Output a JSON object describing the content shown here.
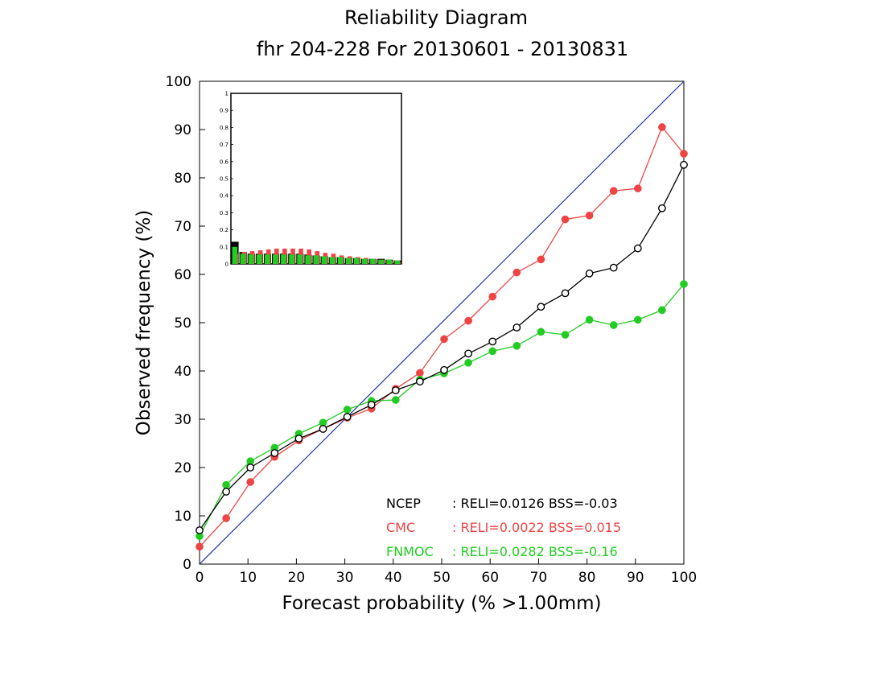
{
  "chart_data": {
    "type": "line",
    "title": "Reliability Diagram",
    "subtitle": "fhr 204-228 For 20130601 - 20130831",
    "xlabel": "Forecast probability (% >1.00mm)",
    "ylabel": "Observed frequency (%)",
    "xlim": [
      0,
      100
    ],
    "ylim": [
      0,
      100
    ],
    "xticks": [
      0,
      10,
      20,
      30,
      40,
      50,
      60,
      70,
      80,
      90,
      100
    ],
    "yticks": [
      0,
      10,
      20,
      30,
      40,
      50,
      60,
      70,
      80,
      90,
      100
    ],
    "grid": false,
    "diagonal_color": "#2233aa",
    "x": [
      0,
      5.5,
      10.5,
      15.5,
      20.5,
      25.5,
      30.5,
      35.5,
      40.5,
      45.5,
      50.5,
      55.5,
      60.5,
      65.5,
      70.5,
      75.5,
      80.5,
      85.5,
      90.5,
      95.5,
      100
    ],
    "series": [
      {
        "name": "NCEP",
        "color": "#000000",
        "marker": "open-circle",
        "stats": ": RELI=0.0126 BSS=-0.03",
        "values": [
          7,
          15,
          20,
          23,
          26,
          28,
          30.5,
          33,
          36,
          37.8,
          40.2,
          43.6,
          46.1,
          49,
          53.3,
          56.1,
          60.2,
          61.4,
          65.4,
          73.7,
          82.7
        ]
      },
      {
        "name": "CMC",
        "color": "#ee4444",
        "marker": "filled-circle",
        "stats": ": RELI=0.0022 BSS=0.015",
        "values": [
          3.6,
          9.5,
          17,
          22.2,
          25.6,
          28,
          30.3,
          32.2,
          36.3,
          39.6,
          46.6,
          50.4,
          55.4,
          60.4,
          63.1,
          71.4,
          72.2,
          77.3,
          77.8,
          90.5,
          85
        ]
      },
      {
        "name": "FNMOC",
        "color": "#22cc22",
        "marker": "filled-circle",
        "stats": ": RELI=0.0282 BSS=-0.16",
        "values": [
          5.8,
          16.4,
          21.3,
          24.1,
          27,
          29.3,
          32,
          33.8,
          34,
          38.2,
          39.5,
          41.7,
          44.1,
          45.2,
          48.1,
          47.5,
          50.6,
          49.5,
          50.6,
          52.6,
          58
        ]
      }
    ],
    "inset": {
      "type": "bar",
      "ylim": [
        0,
        1
      ],
      "yticks": [
        "0",
        "0.1",
        "0.2",
        "0.3",
        "0.4",
        "0.5",
        "0.6",
        "0.7",
        "0.8",
        "0.9",
        "1"
      ],
      "series": [
        {
          "name": "NCEP",
          "color": "#000000",
          "values": [
            0.13,
            0.07,
            0.06,
            0.06,
            0.06,
            0.06,
            0.06,
            0.06,
            0.06,
            0.055,
            0.05,
            0.045,
            0.04,
            0.04,
            0.035,
            0.035,
            0.03,
            0.03,
            0.03,
            0.025,
            0.02
          ]
        },
        {
          "name": "CMC",
          "color": "#ee4444",
          "values": [
            0.06,
            0.07,
            0.075,
            0.08,
            0.085,
            0.09,
            0.09,
            0.09,
            0.09,
            0.085,
            0.075,
            0.065,
            0.06,
            0.05,
            0.045,
            0.04,
            0.035,
            0.03,
            0.025,
            0.02,
            0.015
          ]
        },
        {
          "name": "FNMOC",
          "color": "#22cc22",
          "values": [
            0.1,
            0.06,
            0.055,
            0.055,
            0.055,
            0.055,
            0.055,
            0.055,
            0.055,
            0.05,
            0.05,
            0.045,
            0.04,
            0.04,
            0.035,
            0.035,
            0.03,
            0.03,
            0.025,
            0.025,
            0.02
          ]
        }
      ]
    }
  }
}
